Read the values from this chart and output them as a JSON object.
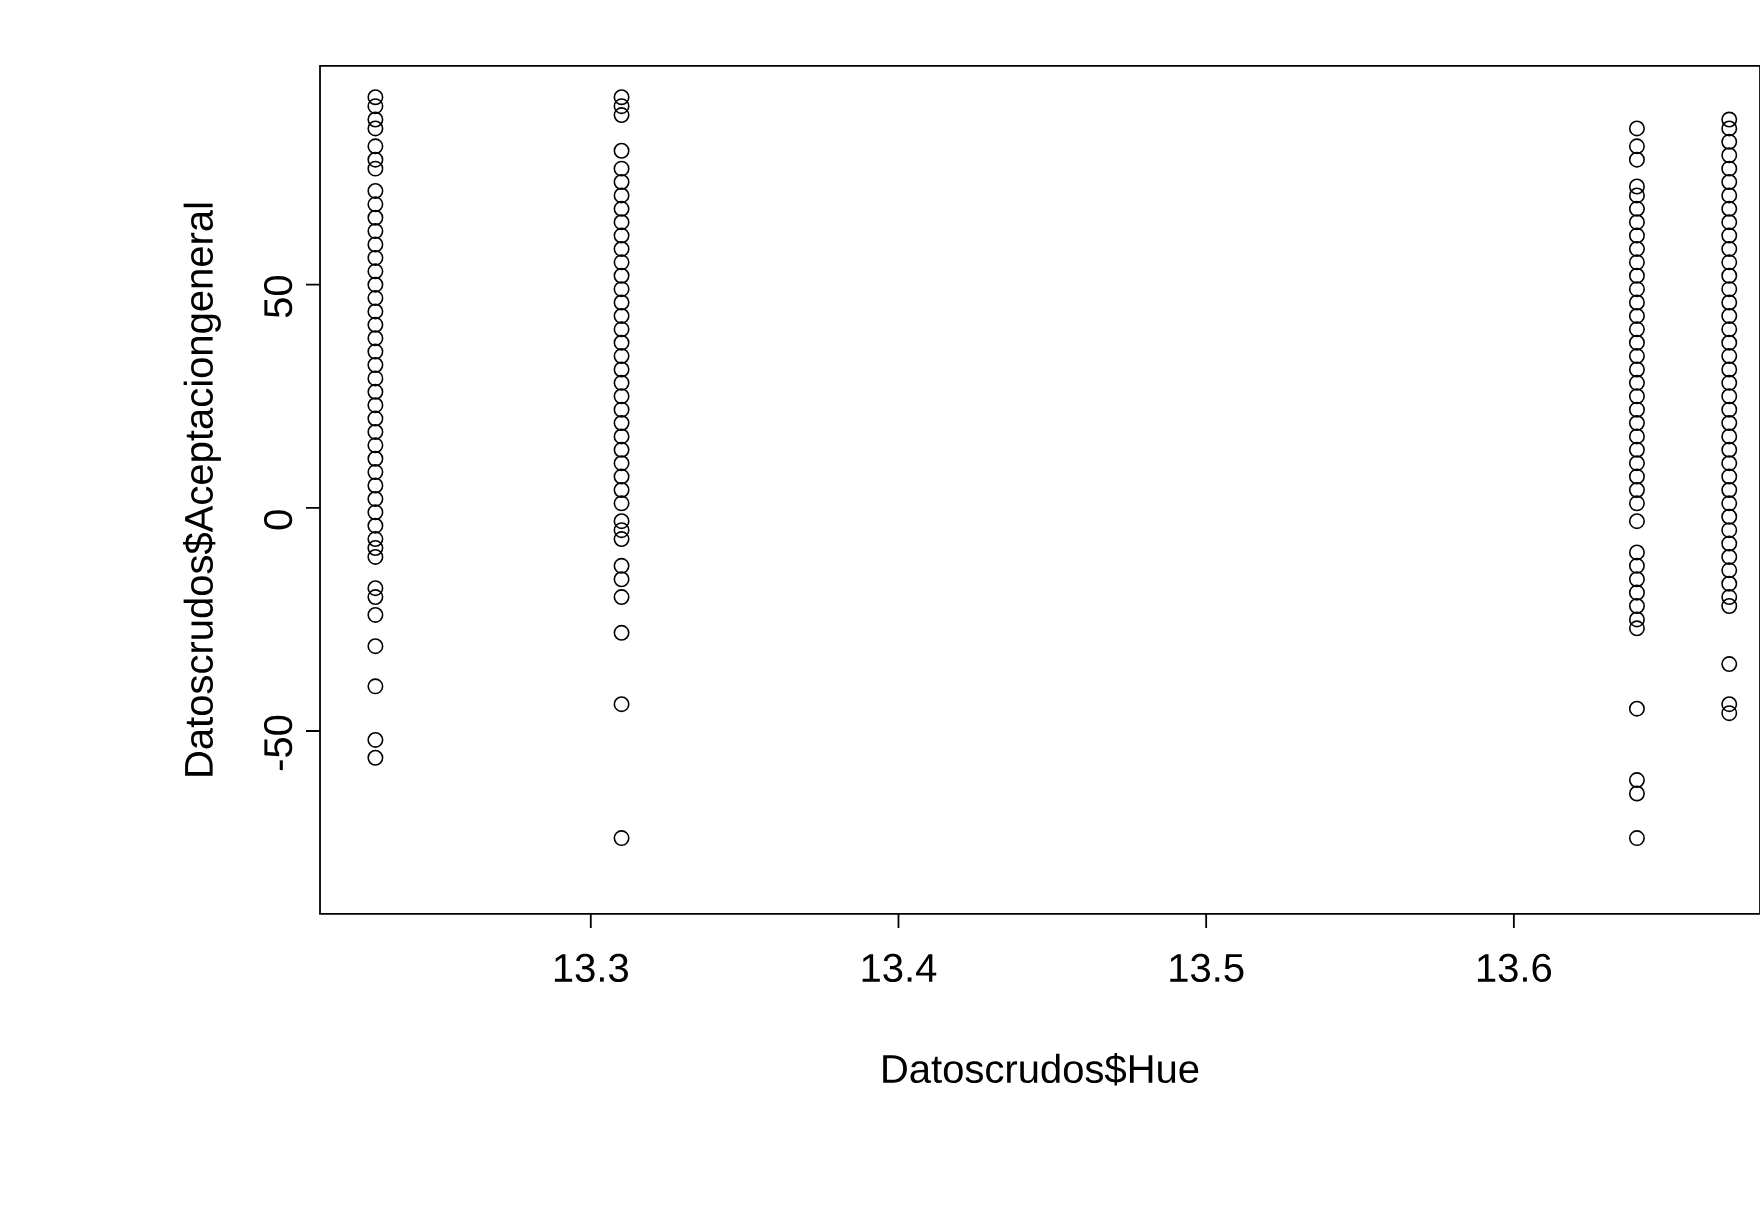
{
  "chart_data": {
    "type": "scatter",
    "xlabel": "Datoscrudos$Hue",
    "ylabel": "Datoscrudos$Aceptaciongeneral",
    "marker": "circle",
    "color": "#000000",
    "xlim": [
      13.212,
      13.68
    ],
    "ylim": [
      -91,
      99
    ],
    "xticks": [
      13.3,
      13.4,
      13.5,
      13.6
    ],
    "yticks": [
      -50,
      0,
      50
    ],
    "x": [
      13.23,
      13.23,
      13.23,
      13.23,
      13.23,
      13.23,
      13.23,
      13.23,
      13.23,
      13.23,
      13.23,
      13.23,
      13.23,
      13.23,
      13.23,
      13.23,
      13.23,
      13.23,
      13.23,
      13.23,
      13.23,
      13.23,
      13.23,
      13.23,
      13.23,
      13.23,
      13.23,
      13.23,
      13.23,
      13.23,
      13.23,
      13.23,
      13.23,
      13.23,
      13.23,
      13.23,
      13.23,
      13.23,
      13.23,
      13.23,
      13.23,
      13.23,
      13.23,
      13.31,
      13.31,
      13.31,
      13.31,
      13.31,
      13.31,
      13.31,
      13.31,
      13.31,
      13.31,
      13.31,
      13.31,
      13.31,
      13.31,
      13.31,
      13.31,
      13.31,
      13.31,
      13.31,
      13.31,
      13.31,
      13.31,
      13.31,
      13.31,
      13.31,
      13.31,
      13.31,
      13.31,
      13.31,
      13.31,
      13.31,
      13.31,
      13.31,
      13.31,
      13.31,
      13.31,
      13.31,
      13.31,
      13.31,
      13.64,
      13.64,
      13.64,
      13.64,
      13.64,
      13.64,
      13.64,
      13.64,
      13.64,
      13.64,
      13.64,
      13.64,
      13.64,
      13.64,
      13.64,
      13.64,
      13.64,
      13.64,
      13.64,
      13.64,
      13.64,
      13.64,
      13.64,
      13.64,
      13.64,
      13.64,
      13.64,
      13.64,
      13.64,
      13.64,
      13.64,
      13.64,
      13.64,
      13.64,
      13.64,
      13.64,
      13.64,
      13.64,
      13.64,
      13.64,
      13.67,
      13.67,
      13.67,
      13.67,
      13.67,
      13.67,
      13.67,
      13.67,
      13.67,
      13.67,
      13.67,
      13.67,
      13.67,
      13.67,
      13.67,
      13.67,
      13.67,
      13.67,
      13.67,
      13.67,
      13.67,
      13.67,
      13.67,
      13.67,
      13.67,
      13.67,
      13.67,
      13.67,
      13.67,
      13.67,
      13.67,
      13.67,
      13.67,
      13.67,
      13.67,
      13.67,
      13.67,
      13.67,
      13.67,
      13.67,
      13.67
    ],
    "values": [
      92,
      90,
      87,
      85,
      81,
      78,
      76,
      71,
      68,
      65,
      62,
      59,
      56,
      53,
      50,
      47,
      44,
      41,
      38,
      35,
      32,
      29,
      26,
      23,
      20,
      17,
      14,
      11,
      8,
      5,
      2,
      -1,
      -4,
      -7,
      -9,
      -11,
      -18,
      -20,
      -24,
      -31,
      -40,
      -52,
      -56,
      92,
      90,
      88,
      80,
      76,
      73,
      70,
      67,
      64,
      61,
      58,
      55,
      52,
      49,
      46,
      43,
      40,
      37,
      34,
      31,
      28,
      25,
      22,
      19,
      16,
      13,
      10,
      7,
      4,
      1,
      -3,
      -5,
      -7,
      -13,
      -16,
      -20,
      -28,
      -44,
      -74,
      85,
      81,
      78,
      72,
      70,
      67,
      64,
      61,
      58,
      55,
      52,
      49,
      46,
      43,
      40,
      37,
      34,
      31,
      28,
      25,
      22,
      19,
      16,
      13,
      10,
      7,
      4,
      1,
      -3,
      -10,
      -13,
      -16,
      -19,
      -22,
      -25,
      -27,
      -45,
      -61,
      -64,
      -74,
      87,
      85,
      82,
      79,
      76,
      73,
      70,
      67,
      64,
      61,
      58,
      55,
      52,
      49,
      46,
      43,
      40,
      37,
      34,
      31,
      28,
      25,
      22,
      19,
      16,
      13,
      10,
      7,
      4,
      1,
      -2,
      -5,
      -8,
      -11,
      -14,
      -17,
      -20,
      -22,
      -35,
      -44,
      -46
    ]
  }
}
